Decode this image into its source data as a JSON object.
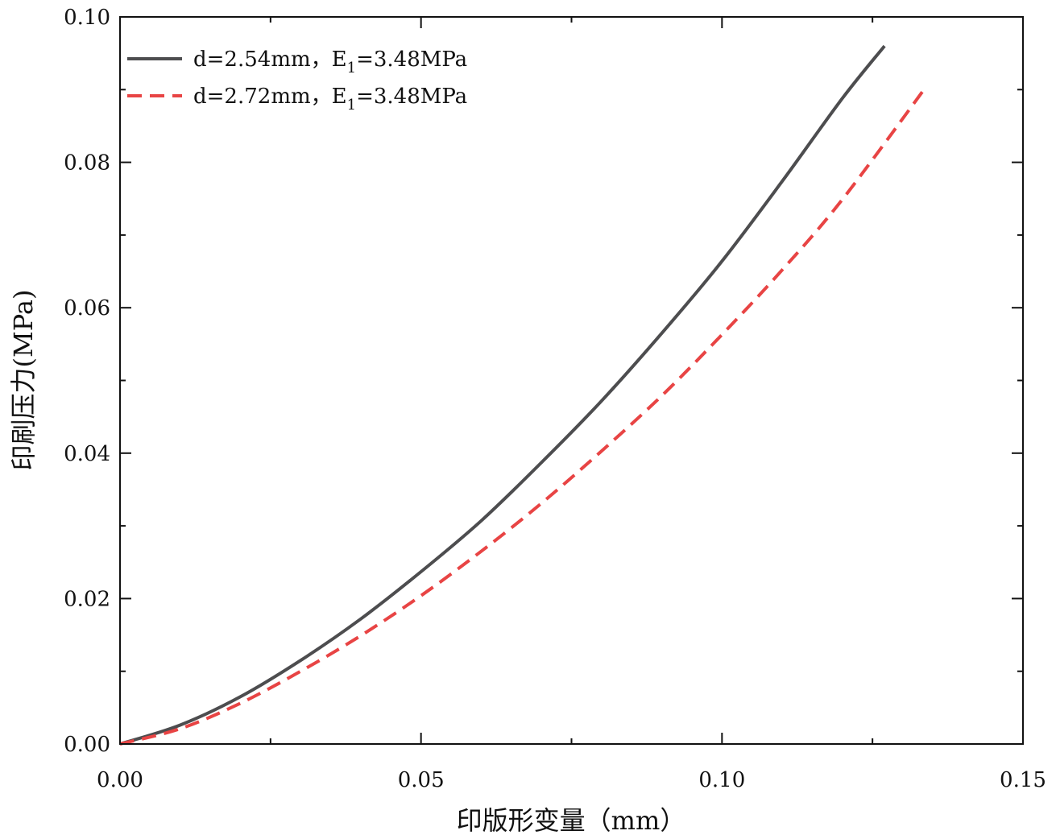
{
  "chart_data": {
    "type": "line",
    "title": "",
    "xlabel": "印版形变量（mm）",
    "ylabel": "印刷压力(MPa)",
    "xlim": [
      0,
      0.15
    ],
    "ylim": [
      0,
      0.1
    ],
    "xticks": [
      "0.00",
      "0.05",
      "0.10",
      "0.15"
    ],
    "yticks": [
      "0.00",
      "0.02",
      "0.04",
      "0.06",
      "0.08",
      "0.10"
    ],
    "legend_position": "top-left",
    "grid": false,
    "series": [
      {
        "name_main": "d=2.54mm，E",
        "name_sub": "1",
        "name_tail": "=3.48MPa",
        "color": "#4d4d4f",
        "dash": "solid",
        "x": [
          0,
          0.01,
          0.02,
          0.03,
          0.04,
          0.05,
          0.06,
          0.07,
          0.08,
          0.09,
          0.1,
          0.11,
          0.12,
          0.127
        ],
        "y": [
          0,
          0.0026,
          0.0065,
          0.0115,
          0.0172,
          0.0237,
          0.0307,
          0.0387,
          0.0472,
          0.0565,
          0.0664,
          0.0774,
          0.0888,
          0.096
        ]
      },
      {
        "name_main": "d=2.72mm，E",
        "name_sub": "1",
        "name_tail": "=3.48MPa",
        "color": "#e84444",
        "dash": "dashed",
        "x": [
          0,
          0.01,
          0.02,
          0.03,
          0.04,
          0.05,
          0.06,
          0.07,
          0.08,
          0.09,
          0.1,
          0.11,
          0.12,
          0.134
        ],
        "y": [
          0,
          0.0021,
          0.0056,
          0.01,
          0.0149,
          0.0204,
          0.0265,
          0.0331,
          0.0403,
          0.0479,
          0.0563,
          0.0652,
          0.0749,
          0.0905
        ]
      }
    ]
  }
}
